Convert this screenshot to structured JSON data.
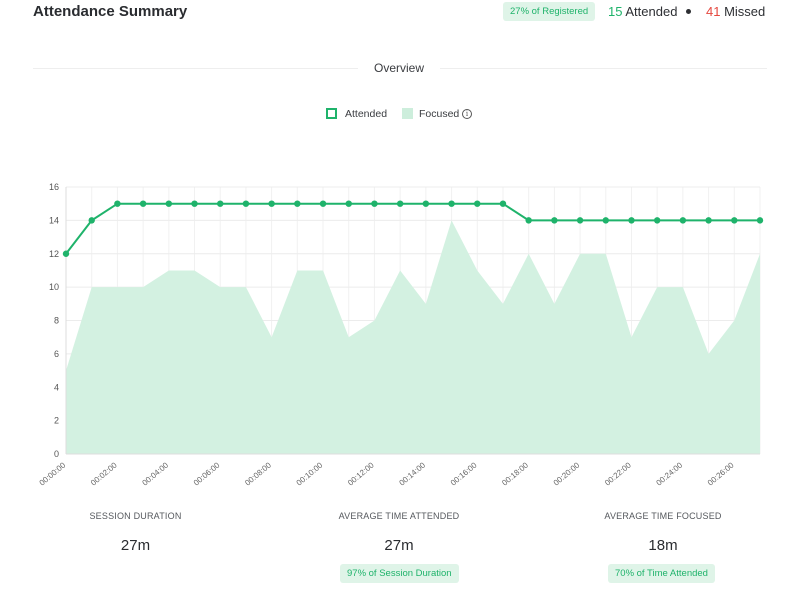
{
  "header": {
    "title": "Attendance Summary",
    "registered_pill": "27% of Registered",
    "attended_count": "15",
    "attended_label": "Attended",
    "missed_count": "41",
    "missed_label": "Missed"
  },
  "section": {
    "label": "Overview"
  },
  "legend": {
    "attended": "Attended",
    "focused": "Focused",
    "info_icon": "info-icon"
  },
  "colors": {
    "accent": "#1fb36b",
    "focused_fill": "#d3f1e1",
    "missed": "#e5483f"
  },
  "chart_data": {
    "type": "line",
    "x": [
      "00:00:00",
      "00:01:00",
      "00:02:00",
      "00:03:00",
      "00:04:00",
      "00:05:00",
      "00:06:00",
      "00:07:00",
      "00:08:00",
      "00:09:00",
      "00:10:00",
      "00:11:00",
      "00:12:00",
      "00:13:00",
      "00:14:00",
      "00:15:00",
      "00:16:00",
      "00:17:00",
      "00:18:00",
      "00:19:00",
      "00:20:00",
      "00:21:00",
      "00:22:00",
      "00:23:00",
      "00:24:00",
      "00:25:00",
      "00:26:00",
      "00:27:00"
    ],
    "x_tick_labels": [
      "00:00:00",
      "00:02:00",
      "00:04:00",
      "00:06:00",
      "00:08:00",
      "00:10:00",
      "00:12:00",
      "00:14:00",
      "00:16:00",
      "00:18:00",
      "00:20:00",
      "00:22:00",
      "00:24:00",
      "00:26:00"
    ],
    "y_ticks": [
      0,
      2,
      4,
      6,
      8,
      10,
      12,
      14,
      16
    ],
    "ylim": [
      0,
      16
    ],
    "grid": true,
    "legend_position": "top-center",
    "series": [
      {
        "name": "Attended",
        "kind": "line",
        "values": [
          12,
          14,
          15,
          15,
          15,
          15,
          15,
          15,
          15,
          15,
          15,
          15,
          15,
          15,
          15,
          15,
          15,
          15,
          14,
          14,
          14,
          14,
          14,
          14,
          14,
          14,
          14,
          14
        ]
      },
      {
        "name": "Focused",
        "kind": "area",
        "values": [
          5,
          10,
          10,
          10,
          11,
          11,
          10,
          10,
          7,
          11,
          11,
          7,
          8,
          11,
          9,
          14,
          11,
          9,
          12,
          9,
          12,
          12,
          7,
          10,
          10,
          6,
          8,
          12
        ]
      }
    ]
  },
  "metrics": [
    {
      "caption": "SESSION DURATION",
      "value": "27m",
      "badge": ""
    },
    {
      "caption": "AVERAGE TIME ATTENDED",
      "value": "27m",
      "badge": "97% of Session Duration"
    },
    {
      "caption": "AVERAGE TIME FOCUSED",
      "value": "18m",
      "badge": "70% of Time Attended"
    }
  ]
}
